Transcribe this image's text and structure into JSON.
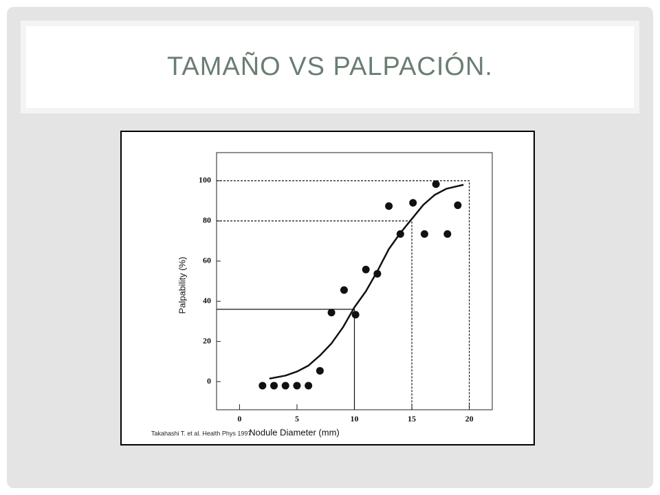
{
  "slide_title": "TAMAÑO VS PALPACIÓN.",
  "chart_data": {
    "type": "scatter",
    "x_label": "Nodule Diameter (mm)",
    "y_label": "Palpability (%)",
    "source": "Takahashi T. et al. Health Phys 1997",
    "xlim": [
      -2,
      22
    ],
    "ylim": [
      -14,
      114
    ],
    "xticks": [
      0,
      5,
      10,
      15,
      20
    ],
    "yticks": [
      0,
      20,
      40,
      60,
      80,
      100
    ],
    "points": {
      "x": [
        2,
        3,
        4,
        5,
        6,
        7,
        8,
        9.1,
        10.1,
        11,
        12,
        13,
        14,
        15.1,
        16.1,
        17.1,
        18.1,
        19
      ],
      "y": [
        -2,
        -2,
        -2,
        -2,
        -2,
        5.4,
        34.4,
        45.6,
        33.3,
        55.8,
        53.7,
        87.4,
        73.5,
        89,
        73.5,
        98.3,
        73.5,
        87.8
      ],
      "color": "#111111"
    },
    "curve": {
      "x": [
        2.6,
        4,
        5,
        6,
        7,
        8,
        9,
        10,
        11,
        12,
        13,
        14,
        15,
        16,
        17,
        18,
        19.5
      ],
      "y": [
        1.5,
        3,
        5,
        8,
        13,
        19,
        27,
        37,
        45,
        55,
        66,
        74,
        81,
        88,
        93,
        96,
        98
      ],
      "color": "#111111"
    },
    "reference_lines": [
      {
        "x": 10,
        "y": 36,
        "style": "solid"
      },
      {
        "x": 15,
        "y": 80,
        "style": "dashed"
      },
      {
        "x": 20,
        "y": 100,
        "style": "dashed"
      }
    ]
  }
}
